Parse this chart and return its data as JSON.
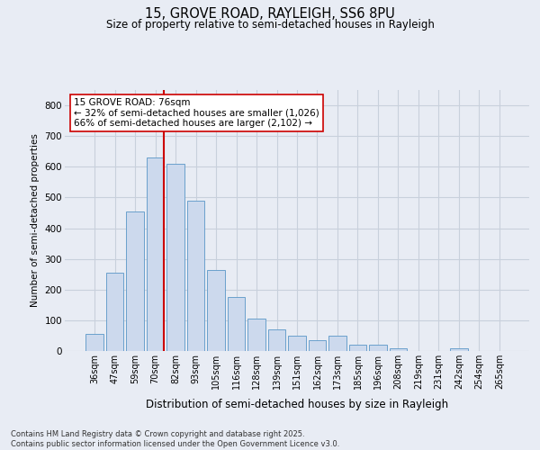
{
  "title_line1": "15, GROVE ROAD, RAYLEIGH, SS6 8PU",
  "title_line2": "Size of property relative to semi-detached houses in Rayleigh",
  "xlabel": "Distribution of semi-detached houses by size in Rayleigh",
  "ylabel": "Number of semi-detached properties",
  "categories": [
    "36sqm",
    "47sqm",
    "59sqm",
    "70sqm",
    "82sqm",
    "93sqm",
    "105sqm",
    "116sqm",
    "128sqm",
    "139sqm",
    "151sqm",
    "162sqm",
    "173sqm",
    "185sqm",
    "196sqm",
    "208sqm",
    "219sqm",
    "231sqm",
    "242sqm",
    "254sqm",
    "265sqm"
  ],
  "values": [
    55,
    255,
    455,
    630,
    610,
    490,
    265,
    175,
    105,
    70,
    50,
    35,
    50,
    20,
    20,
    10,
    0,
    0,
    10,
    0,
    0
  ],
  "bar_color": "#ccd9ed",
  "bar_edge_color": "#6aa0cc",
  "vline_color": "#cc0000",
  "annotation_text": "15 GROVE ROAD: 76sqm\n← 32% of semi-detached houses are smaller (1,026)\n66% of semi-detached houses are larger (2,102) →",
  "annotation_box_color": "#ffffff",
  "annotation_box_edge": "#cc0000",
  "grid_color": "#c8d0dc",
  "background_color": "#e8ecf4",
  "ylim": [
    0,
    850
  ],
  "yticks": [
    0,
    100,
    200,
    300,
    400,
    500,
    600,
    700,
    800
  ],
  "footer_line1": "Contains HM Land Registry data © Crown copyright and database right 2025.",
  "footer_line2": "Contains public sector information licensed under the Open Government Licence v3.0."
}
